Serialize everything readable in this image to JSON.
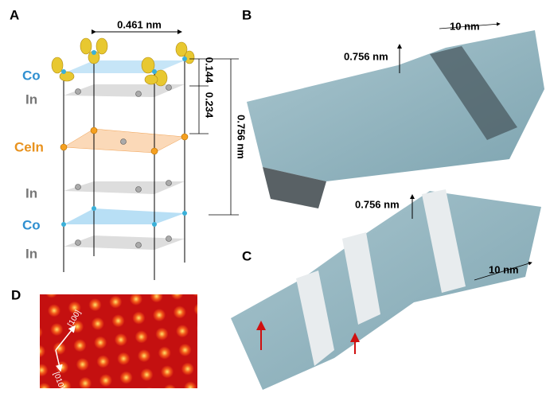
{
  "panel_a": {
    "label": "A",
    "width_label": "0.461 nm",
    "layers": [
      "Co",
      "In",
      "CeIn",
      "In",
      "Co",
      "In"
    ],
    "spacing_1": "0.144",
    "spacing_2": "0.234",
    "spacing_total": "0.756 nm"
  },
  "panel_b": {
    "label": "B",
    "step_height": "0.756 nm",
    "scale": "10 nm"
  },
  "panel_c": {
    "label": "C",
    "step_height": "0.756 nm",
    "scale": "10 nm"
  },
  "panel_d": {
    "label": "D",
    "direction_1": "[100]",
    "direction_2": "[010]"
  }
}
